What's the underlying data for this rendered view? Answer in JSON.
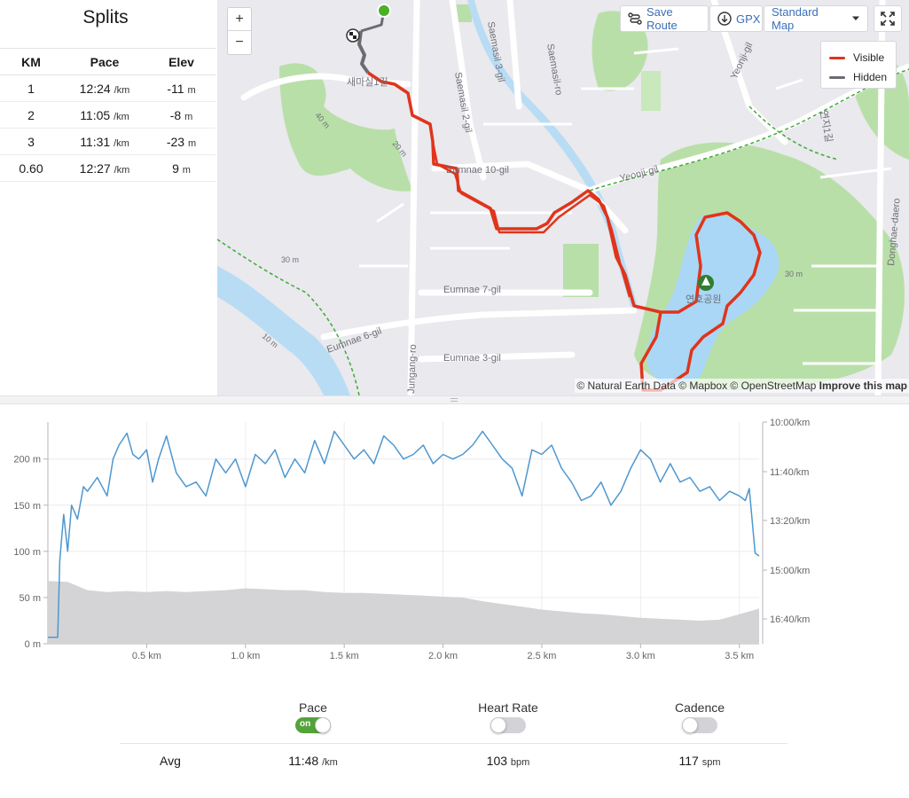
{
  "splits": {
    "title": "Splits",
    "headers": {
      "km": "KM",
      "pace": "Pace",
      "elev": "Elev"
    },
    "pace_unit": "/km",
    "elev_unit": "m",
    "rows": [
      {
        "km": "1",
        "pace": "12:24",
        "elev": "-11"
      },
      {
        "km": "2",
        "pace": "11:05",
        "elev": "-8"
      },
      {
        "km": "3",
        "pace": "11:31",
        "elev": "-23"
      },
      {
        "km": "0.60",
        "pace": "12:27",
        "elev": "9"
      }
    ]
  },
  "map": {
    "zoom_in": "+",
    "zoom_out": "−",
    "save_route": "Save Route",
    "gpx": "GPX",
    "map_style": "Standard Map",
    "legend": [
      {
        "label": "Visible",
        "color": "#e0341b"
      },
      {
        "label": "Hidden",
        "color": "#6b6b72"
      }
    ],
    "attribution": "© Natural Earth Data © Mapbox © OpenStreetMap",
    "attribution_link": "Improve this map",
    "labels": {
      "saemasil2": "Saemasil 2-gil",
      "saemasil3": "Saemasil 3-gil",
      "saemasilro": "Saemasil-ro",
      "yeonji": "Yeonji-gil",
      "yeonjigil_n": "Yeonji-gil",
      "eumnae10": "Eumnae 10-gil",
      "eumnae7": "Eumnae 7-gil",
      "eumnae6": "Eumnae 6-gil",
      "eumnae3": "Eumnae 3-gil",
      "jungangro": "Jungang-ro",
      "donghae": "Donghae-daero",
      "park": "연호공원",
      "saemasil1": "새마실1길",
      "yeonji1": "연지1길",
      "elev40": "40 m",
      "elev20": "20 m",
      "elev30": "30 m",
      "elev10": "10 m",
      "elev30b": "30 m"
    }
  },
  "chart_data": {
    "type": "line",
    "x_unit": "km",
    "x_ticks": [
      "0.5 km",
      "1.0 km",
      "1.5 km",
      "2.0 km",
      "2.5 km",
      "3.0 km",
      "3.5 km"
    ],
    "x_tick_values": [
      0.5,
      1.0,
      1.5,
      2.0,
      2.5,
      3.0,
      3.5
    ],
    "xlim": [
      0,
      3.6
    ],
    "y_left_ticks": [
      "0 m",
      "50 m",
      "100 m",
      "150 m",
      "200 m"
    ],
    "y_left_values": [
      0,
      50,
      100,
      150,
      200
    ],
    "y_left_lim": [
      0,
      240
    ],
    "y_right_ticks": [
      "10:00/km",
      "11:40/km",
      "13:20/km",
      "15:00/km",
      "16:40/km"
    ],
    "series": [
      {
        "name": "Pace",
        "color": "#4e97cf",
        "x": [
          0.0,
          0.05,
          0.06,
          0.08,
          0.1,
          0.12,
          0.15,
          0.18,
          0.2,
          0.25,
          0.3,
          0.33,
          0.36,
          0.4,
          0.43,
          0.46,
          0.5,
          0.53,
          0.56,
          0.6,
          0.65,
          0.7,
          0.75,
          0.8,
          0.85,
          0.9,
          0.95,
          1.0,
          1.05,
          1.1,
          1.15,
          1.2,
          1.25,
          1.3,
          1.35,
          1.4,
          1.45,
          1.5,
          1.55,
          1.6,
          1.65,
          1.7,
          1.75,
          1.8,
          1.85,
          1.9,
          1.95,
          2.0,
          2.05,
          2.1,
          2.15,
          2.2,
          2.25,
          2.3,
          2.35,
          2.4,
          2.45,
          2.5,
          2.55,
          2.6,
          2.65,
          2.7,
          2.75,
          2.8,
          2.85,
          2.9,
          2.95,
          3.0,
          3.05,
          3.1,
          3.15,
          3.2,
          3.25,
          3.3,
          3.35,
          3.4,
          3.45,
          3.5,
          3.53,
          3.55,
          3.58,
          3.6
        ],
        "y": [
          7,
          7,
          90,
          140,
          100,
          150,
          135,
          170,
          165,
          180,
          160,
          200,
          215,
          228,
          205,
          200,
          210,
          175,
          200,
          225,
          185,
          170,
          175,
          160,
          200,
          185,
          200,
          170,
          205,
          195,
          210,
          180,
          200,
          185,
          220,
          195,
          230,
          215,
          200,
          210,
          195,
          225,
          215,
          200,
          205,
          215,
          195,
          205,
          200,
          205,
          215,
          230,
          215,
          200,
          190,
          160,
          210,
          205,
          215,
          190,
          175,
          155,
          160,
          175,
          150,
          165,
          190,
          210,
          200,
          175,
          195,
          175,
          180,
          165,
          170,
          155,
          165,
          160,
          155,
          168,
          98,
          95
        ]
      },
      {
        "name": "Elevation",
        "color": "#d4d4d6",
        "x": [
          0.0,
          0.1,
          0.2,
          0.3,
          0.4,
          0.5,
          0.6,
          0.7,
          0.8,
          0.9,
          1.0,
          1.1,
          1.2,
          1.3,
          1.4,
          1.5,
          1.6,
          1.7,
          1.8,
          1.9,
          2.0,
          2.1,
          2.2,
          2.3,
          2.4,
          2.5,
          2.6,
          2.7,
          2.8,
          2.9,
          3.0,
          3.1,
          3.2,
          3.3,
          3.4,
          3.5,
          3.6
        ],
        "y": [
          68,
          67,
          58,
          56,
          57,
          56,
          57,
          56,
          57,
          58,
          60,
          59,
          58,
          58,
          56,
          55,
          55,
          54,
          53,
          52,
          51,
          50,
          46,
          43,
          40,
          37,
          35,
          33,
          32,
          30,
          28,
          27,
          26,
          25,
          26,
          32,
          38
        ]
      }
    ]
  },
  "stats": {
    "metrics": [
      {
        "label": "Pace",
        "toggle": "on",
        "on_text": "on"
      },
      {
        "label": "Heart Rate",
        "toggle": "off"
      },
      {
        "label": "Cadence",
        "toggle": "off"
      }
    ],
    "avg_label": "Avg",
    "avg": {
      "pace": "11:48",
      "pace_unit": "/km",
      "hr": "103",
      "hr_unit": "bpm",
      "cadence": "117",
      "cadence_unit": "spm"
    }
  }
}
